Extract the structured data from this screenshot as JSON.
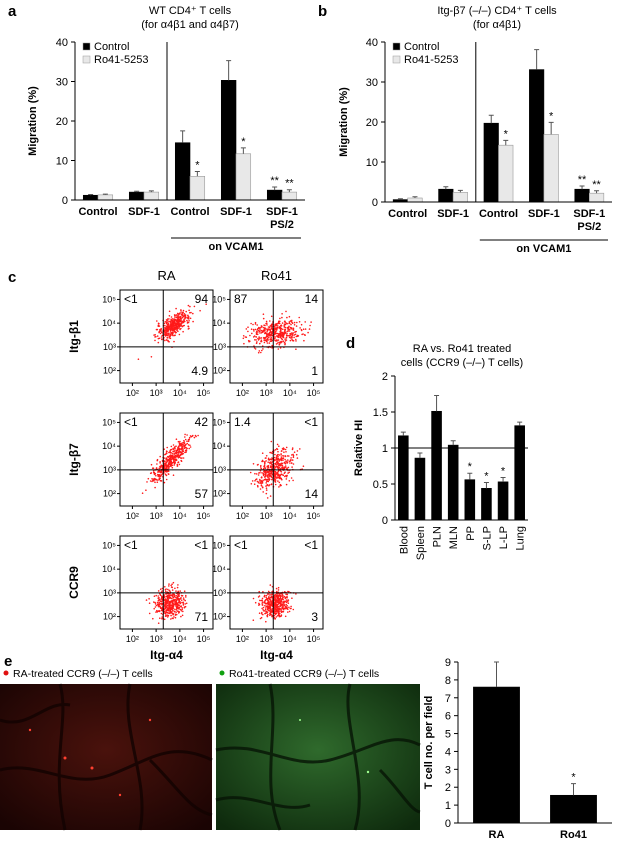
{
  "panel_labels": [
    "a",
    "b",
    "c",
    "d",
    "e"
  ],
  "chart_data": [
    {
      "type": "bar",
      "title": "WT CD4⁺ T cells",
      "subtitle": "(for α4β1 and α4β7)",
      "ylabel": "Migration (%)",
      "categories": [
        "Control",
        "SDF-1",
        "Control",
        "SDF-1",
        "SDF-1 PS/2"
      ],
      "series": [
        {
          "name": "Control",
          "color": "#000000",
          "values": [
            1.2,
            2.0,
            14.5,
            30.3,
            2.5
          ],
          "errors": [
            0.2,
            0.2,
            3.0,
            5.0,
            0.8
          ]
        },
        {
          "name": "Ro41-5253",
          "color": "#e8e8e8",
          "values": [
            1.3,
            2.0,
            6.0,
            11.7,
            2.0
          ],
          "errors": [
            0.2,
            0.3,
            1.2,
            1.5,
            0.6
          ]
        }
      ],
      "ylim": [
        0,
        40
      ],
      "yticks": [
        0,
        10,
        20,
        30,
        40
      ],
      "legend": "top-left",
      "dividers": [
        1
      ],
      "groups": [
        {
          "label": "on VCAM1",
          "from": 2,
          "to": 4
        }
      ],
      "significance": [
        {
          "series": 1,
          "index": 2,
          "label": "*"
        },
        {
          "series": 1,
          "index": 3,
          "label": "*"
        },
        {
          "series": 0,
          "index": 4,
          "label": "**"
        },
        {
          "series": 1,
          "index": 4,
          "label": "**"
        }
      ]
    },
    {
      "type": "bar",
      "title": "Itg-β7 (–/–) CD4⁺ T cells",
      "subtitle": "(for α4β1)",
      "ylabel": "Migration (%)",
      "categories": [
        "Control",
        "SDF-1",
        "Control",
        "SDF-1",
        "SDF-1 PS/2"
      ],
      "series": [
        {
          "name": "Control",
          "color": "#000000",
          "values": [
            0.6,
            3.2,
            19.7,
            33.1,
            3.2
          ],
          "errors": [
            0.2,
            0.6,
            2.0,
            5.0,
            0.8
          ]
        },
        {
          "name": "Ro41-5253",
          "color": "#e8e8e8",
          "values": [
            1.0,
            2.4,
            14.2,
            16.9,
            2.2
          ],
          "errors": [
            0.3,
            0.5,
            1.2,
            3.0,
            0.6
          ]
        }
      ],
      "ylim": [
        0,
        40
      ],
      "yticks": [
        0,
        10,
        20,
        30,
        40
      ],
      "legend": "top-left",
      "dividers": [
        1
      ],
      "groups": [
        {
          "label": "on VCAM1",
          "from": 2,
          "to": 4
        }
      ],
      "significance": [
        {
          "series": 1,
          "index": 2,
          "label": "*"
        },
        {
          "series": 1,
          "index": 3,
          "label": "*"
        },
        {
          "series": 0,
          "index": 4,
          "label": "**"
        },
        {
          "series": 1,
          "index": 4,
          "label": "**"
        }
      ]
    },
    {
      "type": "bar",
      "title": "RA vs. Ro41 treated",
      "subtitle": "cells (CCR9 (–/–) T cells)",
      "ylabel": "Relative HI",
      "categories": [
        "Blood",
        "Spleen",
        "PLN",
        "MLN",
        "PP",
        "S-LP",
        "L-LP",
        "Lung"
      ],
      "series": [
        {
          "color": "#000000",
          "values": [
            1.17,
            0.86,
            1.51,
            1.04,
            0.56,
            0.44,
            0.53,
            1.31
          ],
          "errors": [
            0.05,
            0.07,
            0.22,
            0.06,
            0.09,
            0.08,
            0.06,
            0.05
          ]
        }
      ],
      "ylim": [
        0,
        2
      ],
      "yticks": [
        0,
        0.5,
        1,
        1.5,
        2
      ],
      "hline": 1,
      "xtick_rotation": -90,
      "significance": [
        {
          "series": 0,
          "index": 4,
          "label": "*"
        },
        {
          "series": 0,
          "index": 5,
          "label": "*"
        },
        {
          "series": 0,
          "index": 6,
          "label": "*"
        }
      ]
    },
    {
      "type": "bar",
      "ylabel": "T cell no. per field",
      "categories": [
        "RA",
        "Ro41"
      ],
      "series": [
        {
          "color": "#000000",
          "values": [
            7.6,
            1.55
          ],
          "errors": [
            1.4,
            0.65
          ]
        }
      ],
      "ylim": [
        0,
        9
      ],
      "yticks": [
        0,
        1,
        2,
        3,
        4,
        5,
        6,
        7,
        8,
        9
      ],
      "significance": [
        {
          "series": 0,
          "index": 1,
          "label": "*"
        }
      ]
    }
  ],
  "flow": {
    "columns": [
      "RA",
      "Ro41"
    ],
    "x_label": "Itg-α4",
    "color": "#ff1a1a",
    "axis": {
      "log": true,
      "lim": [
        30,
        250000
      ],
      "ticks": [
        {
          "value": 100,
          "label": "10²"
        },
        {
          "value": 1000,
          "label": "10³"
        },
        {
          "value": 10000,
          "label": "10⁴"
        },
        {
          "value": 100000,
          "label": "10⁵"
        }
      ]
    },
    "gates": {
      "x": 2000,
      "y": 1000
    },
    "rows": [
      {
        "label": "Itg-β1",
        "plots": [
          {
            "ul": "<1",
            "ur": 94,
            "lr": 4.9
          },
          {
            "ul": 87,
            "ur": 14,
            "lr": 1
          }
        ]
      },
      {
        "label": "Itg-β7",
        "plots": [
          {
            "ul": "<1",
            "ur": 42,
            "lr": 57
          },
          {
            "ul": 1.4,
            "ur": "<1",
            "lr": 14
          }
        ]
      },
      {
        "label": "CCR9",
        "plots": [
          {
            "ul": "<1",
            "ur": "<1",
            "lr": 71
          },
          {
            "ul": "<1",
            "ur": "<1",
            "lr": 3
          }
        ]
      }
    ]
  },
  "images": {
    "legend": [
      {
        "label": "RA-treated CCR9 (–/–) T cells",
        "color": "#e01010"
      },
      {
        "label": "Ro41-treated CCR9 (–/–) T cells",
        "color": "#10a010"
      }
    ]
  }
}
